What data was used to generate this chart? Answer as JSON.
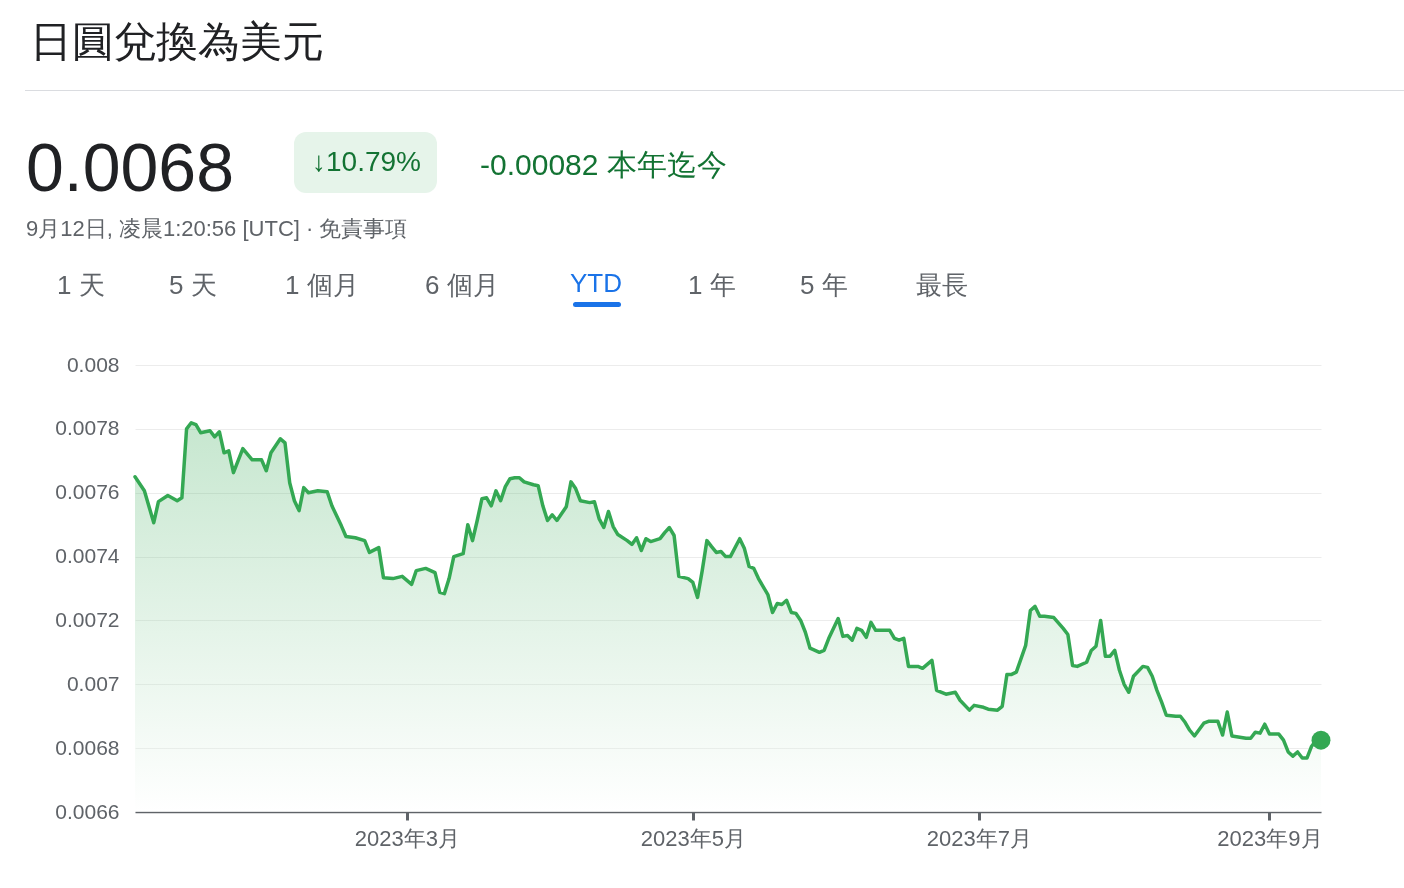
{
  "chart_data": {
    "type": "area",
    "title": "日圓兌換為美元",
    "annotations": [
      "0.0068",
      "↓10.79%",
      "-0.00082 本年迄今",
      "9月12日, 凌晨1:20:56 [UTC] · 免責事項",
      "1 天",
      "5 天",
      "1 個月",
      "6 個月",
      "YTD",
      "1 年",
      "5 年",
      "最長"
    ],
    "xlim": [
      "2023-01-02",
      "2023-09-12"
    ],
    "xticks": [
      {
        "value": "2023-03-01",
        "label": "2023年3月"
      },
      {
        "value": "2023-05-01",
        "label": "2023年5月"
      },
      {
        "value": "2023-07-01",
        "label": "2023年7月"
      },
      {
        "value": "2023-09-01",
        "label": "2023年9月"
      }
    ],
    "ylim": [
      0.0066,
      0.008
    ],
    "yticks": [
      0.0066,
      0.0068,
      0.007,
      0.0072,
      0.0074,
      0.0076,
      0.0078,
      0.008
    ],
    "grid": "y",
    "series": [
      {
        "color": "#34a853",
        "line_style": "solid",
        "x": [
          "2023-01-02",
          "2023-01-04",
          "2023-01-06",
          "2023-01-07",
          "2023-01-09",
          "2023-01-11",
          "2023-01-12",
          "2023-01-13",
          "2023-01-14",
          "2023-01-15",
          "2023-01-16",
          "2023-01-18",
          "2023-01-19",
          "2023-01-20",
          "2023-01-21",
          "2023-01-22",
          "2023-01-23",
          "2023-01-25",
          "2023-01-27",
          "2023-01-29",
          "2023-01-30",
          "2023-01-31",
          "2023-02-02",
          "2023-02-03",
          "2023-02-04",
          "2023-02-05",
          "2023-02-06",
          "2023-02-07",
          "2023-02-08",
          "2023-02-10",
          "2023-02-12",
          "2023-02-13",
          "2023-02-15",
          "2023-02-16",
          "2023-02-18",
          "2023-02-20",
          "2023-02-21",
          "2023-02-23",
          "2023-02-24",
          "2023-02-26",
          "2023-02-28",
          "2023-03-02",
          "2023-03-03",
          "2023-03-05",
          "2023-03-07",
          "2023-03-08",
          "2023-03-09",
          "2023-03-10",
          "2023-03-11",
          "2023-03-13",
          "2023-03-14",
          "2023-03-15",
          "2023-03-16",
          "2023-03-17",
          "2023-03-18",
          "2023-03-19",
          "2023-03-20",
          "2023-03-21",
          "2023-03-22",
          "2023-03-23",
          "2023-03-24",
          "2023-03-25",
          "2023-03-26",
          "2023-03-28",
          "2023-03-29",
          "2023-03-30",
          "2023-03-31",
          "2023-04-01",
          "2023-04-02",
          "2023-04-04",
          "2023-04-05",
          "2023-04-06",
          "2023-04-07",
          "2023-04-09",
          "2023-04-10",
          "2023-04-11",
          "2023-04-12",
          "2023-04-13",
          "2023-04-14",
          "2023-04-15",
          "2023-04-17",
          "2023-04-18",
          "2023-04-19",
          "2023-04-20",
          "2023-04-21",
          "2023-04-22",
          "2023-04-24",
          "2023-04-25",
          "2023-04-26",
          "2023-04-27",
          "2023-04-28",
          "2023-04-30",
          "2023-05-01",
          "2023-05-02",
          "2023-05-03",
          "2023-05-04",
          "2023-05-05",
          "2023-05-06",
          "2023-05-07",
          "2023-05-08",
          "2023-05-09",
          "2023-05-11",
          "2023-05-12",
          "2023-05-13",
          "2023-05-14",
          "2023-05-15",
          "2023-05-17",
          "2023-05-18",
          "2023-05-19",
          "2023-05-20",
          "2023-05-21",
          "2023-05-22",
          "2023-05-23",
          "2023-05-24",
          "2023-05-25",
          "2023-05-26",
          "2023-05-28",
          "2023-05-29",
          "2023-05-30",
          "2023-06-01",
          "2023-06-02",
          "2023-06-03",
          "2023-06-04",
          "2023-06-05",
          "2023-06-06",
          "2023-06-07",
          "2023-06-08",
          "2023-06-09",
          "2023-06-12",
          "2023-06-13",
          "2023-06-14",
          "2023-06-15",
          "2023-06-16",
          "2023-06-18",
          "2023-06-19",
          "2023-06-21",
          "2023-06-22",
          "2023-06-24",
          "2023-06-25",
          "2023-06-26",
          "2023-06-27",
          "2023-06-29",
          "2023-06-30",
          "2023-07-02",
          "2023-07-03",
          "2023-07-05",
          "2023-07-06",
          "2023-07-07",
          "2023-07-08",
          "2023-07-09",
          "2023-07-11",
          "2023-07-12",
          "2023-07-13",
          "2023-07-14",
          "2023-07-15",
          "2023-07-17",
          "2023-07-19",
          "2023-07-20",
          "2023-07-21",
          "2023-07-22",
          "2023-07-24",
          "2023-07-25",
          "2023-07-26",
          "2023-07-27",
          "2023-07-28",
          "2023-07-29",
          "2023-07-30",
          "2023-07-31",
          "2023-08-01",
          "2023-08-02",
          "2023-08-03",
          "2023-08-05",
          "2023-08-06",
          "2023-08-07",
          "2023-08-08",
          "2023-08-09",
          "2023-08-10",
          "2023-08-12",
          "2023-08-13",
          "2023-08-14",
          "2023-08-15",
          "2023-08-16",
          "2023-08-18",
          "2023-08-19",
          "2023-08-21",
          "2023-08-22",
          "2023-08-23",
          "2023-08-24",
          "2023-08-27",
          "2023-08-28",
          "2023-08-29",
          "2023-08-30",
          "2023-08-31",
          "2023-09-01",
          "2023-09-03",
          "2023-09-04",
          "2023-09-05",
          "2023-09-06",
          "2023-09-07",
          "2023-09-08",
          "2023-09-09",
          "2023-09-10",
          "2023-09-11",
          "2023-09-12"
        ],
        "values": [
          0.00765,
          0.007606,
          0.007506,
          0.007572,
          0.007591,
          0.007575,
          0.007584,
          0.0078,
          0.007819,
          0.007813,
          0.007788,
          0.007794,
          0.007775,
          0.007791,
          0.007725,
          0.007731,
          0.007663,
          0.007738,
          0.007703,
          0.007703,
          0.007669,
          0.007725,
          0.007769,
          0.007756,
          0.007631,
          0.007575,
          0.007544,
          0.007616,
          0.0076,
          0.007606,
          0.007603,
          0.007559,
          0.007497,
          0.007463,
          0.007459,
          0.00745,
          0.007413,
          0.007428,
          0.007334,
          0.007331,
          0.007338,
          0.007313,
          0.007356,
          0.007363,
          0.00735,
          0.007288,
          0.007284,
          0.007331,
          0.0074,
          0.007409,
          0.0075,
          0.00745,
          0.007513,
          0.007581,
          0.007584,
          0.007559,
          0.007606,
          0.007575,
          0.007619,
          0.007644,
          0.007647,
          0.007647,
          0.007634,
          0.007625,
          0.007622,
          0.007559,
          0.007513,
          0.007531,
          0.007513,
          0.007556,
          0.007634,
          0.007613,
          0.007575,
          0.007569,
          0.007572,
          0.007519,
          0.007491,
          0.007541,
          0.007494,
          0.007469,
          0.00745,
          0.007438,
          0.007459,
          0.007419,
          0.007456,
          0.007447,
          0.007456,
          0.007475,
          0.007491,
          0.007466,
          0.007338,
          0.007331,
          0.007319,
          0.007272,
          0.007356,
          0.00745,
          0.007431,
          0.007413,
          0.007416,
          0.0074,
          0.0074,
          0.007456,
          0.007425,
          0.007369,
          0.007363,
          0.007331,
          0.007281,
          0.007225,
          0.007253,
          0.00725,
          0.007263,
          0.007225,
          0.007222,
          0.0072,
          0.007163,
          0.007113,
          0.0071,
          0.007106,
          0.007144,
          0.007206,
          0.00715,
          0.007153,
          0.007138,
          0.007175,
          0.007169,
          0.007147,
          0.007194,
          0.007169,
          0.007169,
          0.007144,
          0.007138,
          0.007144,
          0.007056,
          0.007056,
          0.00705,
          0.007075,
          0.006981,
          0.006969,
          0.006972,
          0.006975,
          0.00695,
          0.006919,
          0.006934,
          0.006928,
          0.006922,
          0.006919,
          0.006931,
          0.007031,
          0.007031,
          0.007038,
          0.007122,
          0.007231,
          0.007244,
          0.007213,
          0.007213,
          0.007209,
          0.007175,
          0.007156,
          0.007059,
          0.007056,
          0.007069,
          0.007106,
          0.007119,
          0.0072,
          0.007088,
          0.007088,
          0.007106,
          0.007044,
          0.007,
          0.006975,
          0.007025,
          0.007056,
          0.007053,
          0.007025,
          0.006981,
          0.006944,
          0.006903,
          0.0069,
          0.0069,
          0.006881,
          0.006856,
          0.006838,
          0.006878,
          0.006884,
          0.006884,
          0.006841,
          0.006913,
          0.006838,
          0.006831,
          0.006831,
          0.00685,
          0.006847,
          0.006875,
          0.006844,
          0.006844,
          0.006825,
          0.006788,
          0.006775,
          0.006788,
          0.006769,
          0.006769,
          0.006806,
          0.006825,
          0.006825
        ]
      },
      {
        "type": "scatter",
        "color": "#34a853",
        "marker": "circle",
        "x": [
          "2023-09-12"
        ],
        "values": [
          0.006825
        ]
      }
    ]
  }
}
